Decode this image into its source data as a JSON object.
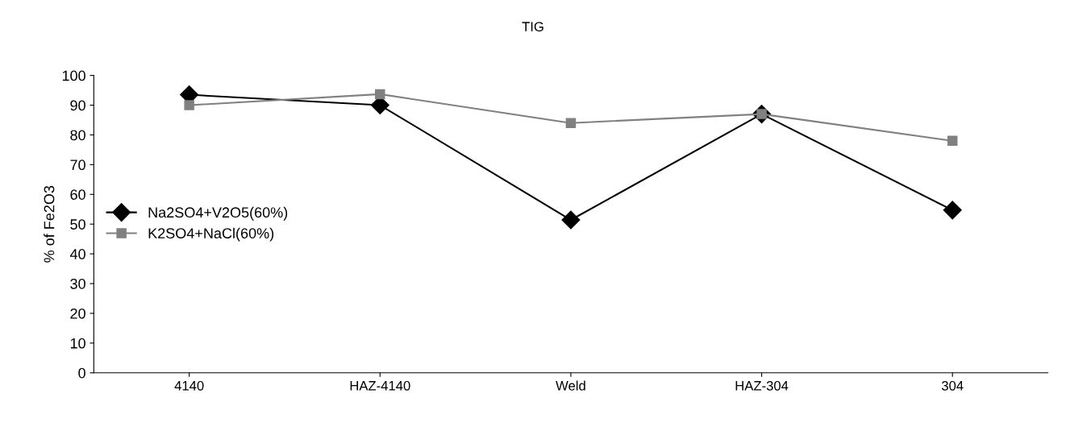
{
  "chart_data": {
    "type": "line",
    "title": "TIG",
    "ylabel": "% of Fe2O3",
    "categories": [
      "4140",
      "HAZ-4140",
      "Weld",
      "HAZ-304",
      "304"
    ],
    "series": [
      {
        "name": "Na2SO4+V2O5(60%)",
        "color": "#000000",
        "marker": "diamond",
        "values": [
          93.5,
          90,
          51.4,
          87,
          54.7
        ]
      },
      {
        "name": "K2SO4+NaCl(60%)",
        "color": "#808080",
        "marker": "square",
        "values": [
          90,
          93.7,
          84,
          87,
          78
        ]
      }
    ],
    "ylim": [
      0,
      100
    ],
    "yticks": [
      0,
      10,
      20,
      30,
      40,
      50,
      60,
      70,
      80,
      90,
      100
    ],
    "grid": false,
    "legend": "center left",
    "line_style": "solid"
  }
}
